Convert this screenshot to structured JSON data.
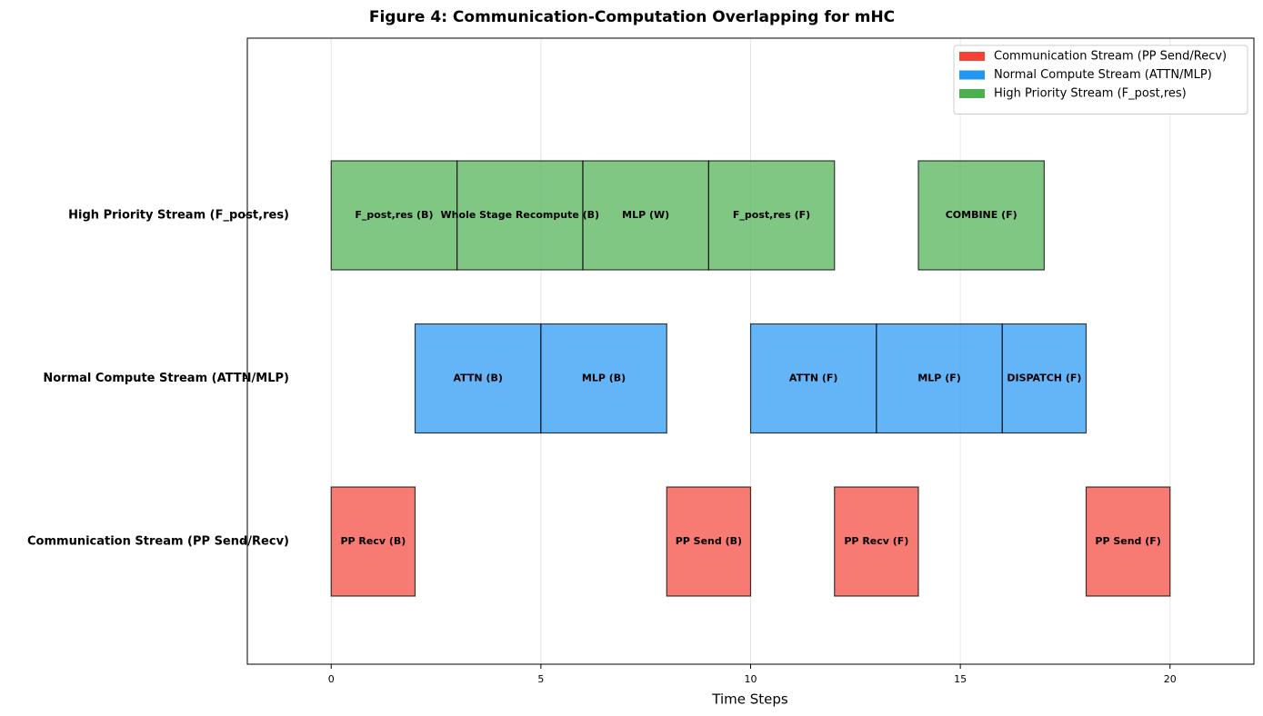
{
  "chart_data": {
    "type": "gantt",
    "title": "Figure 4: Communication-Computation Overlapping for mHC",
    "x_label": "Time Steps",
    "xlim": [
      -2,
      22
    ],
    "xticks": [
      0,
      5,
      10,
      15,
      20
    ],
    "grid": true,
    "legend": "upper right",
    "series": [
      {
        "name": "Communication Stream (PP Send/Recv)",
        "color": "#f44336",
        "tasks": [
          {
            "label": "PP Recv (B)",
            "start": 0,
            "end": 2
          },
          {
            "label": "PP Send (B)",
            "start": 8,
            "end": 10
          },
          {
            "label": "PP Recv (F)",
            "start": 12,
            "end": 14
          },
          {
            "label": "PP Send (F)",
            "start": 18,
            "end": 20
          }
        ]
      },
      {
        "name": "Normal Compute Stream (ATTN/MLP)",
        "color": "#2196f3",
        "tasks": [
          {
            "label": "ATTN (B)",
            "start": 2,
            "end": 5
          },
          {
            "label": "MLP (B)",
            "start": 5,
            "end": 8
          },
          {
            "label": "ATTN (F)",
            "start": 10,
            "end": 13
          },
          {
            "label": "MLP (F)",
            "start": 13,
            "end": 16
          },
          {
            "label": "DISPATCH (F)",
            "start": 16,
            "end": 18
          }
        ]
      },
      {
        "name": "High Priority Stream (F_post,res)",
        "color": "#4caf50",
        "tasks": [
          {
            "label": "F_post,res (B)",
            "start": 0,
            "end": 3
          },
          {
            "label": "Whole Stage Recompute (B)",
            "start": 3,
            "end": 6
          },
          {
            "label": "MLP (W)",
            "start": 6,
            "end": 9
          },
          {
            "label": "F_post,res (F)",
            "start": 9,
            "end": 12
          },
          {
            "label": "COMBINE (F)",
            "start": 14,
            "end": 17
          }
        ]
      }
    ]
  }
}
